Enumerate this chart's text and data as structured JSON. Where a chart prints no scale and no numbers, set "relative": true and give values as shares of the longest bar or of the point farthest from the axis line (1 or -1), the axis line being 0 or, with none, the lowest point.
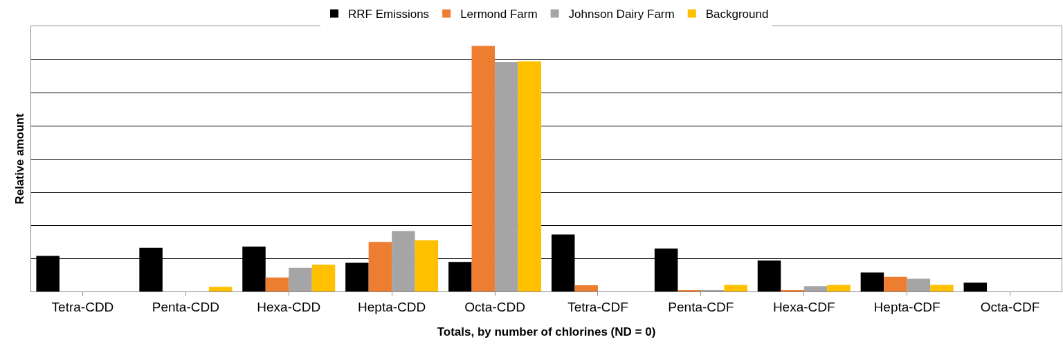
{
  "chart_data": {
    "type": "bar",
    "xlabel": "Totals, by number of chlorines (ND = 0)",
    "ylabel": "Relative amount",
    "categories": [
      "Tetra-CDD",
      "Penta-CDD",
      "Hexa-CDD",
      "Hepta-CDD",
      "Octa-CDD",
      "Tetra-CDF",
      "Penta-CDF",
      "Hexa-CDF",
      "Hepta-CDF",
      "Octa-CDF"
    ],
    "relative": true,
    "grid": "y",
    "legend": "top",
    "series": [
      {
        "name": "RRF Emissions",
        "color": "#000000",
        "values": [
          0.145,
          0.178,
          0.183,
          0.117,
          0.12,
          0.232,
          0.175,
          0.126,
          0.077,
          0.036
        ]
      },
      {
        "name": "Lermond Farm",
        "color": "#ed7d31",
        "values": [
          0,
          0,
          0.057,
          0.202,
          1,
          0.025,
          0.005,
          0.005,
          0.06,
          0
        ]
      },
      {
        "name": "Johnson Dairy Farm",
        "color": "#a5a5a5",
        "values": [
          0,
          0,
          0.096,
          0.246,
          0.934,
          0,
          0.005,
          0.022,
          0.052,
          0
        ]
      },
      {
        "name": "Background",
        "color": "#ffc000",
        "values": [
          0,
          0.019,
          0.109,
          0.208,
          0.937,
          0,
          0.027,
          0.027,
          0.027,
          0
        ]
      }
    ]
  }
}
